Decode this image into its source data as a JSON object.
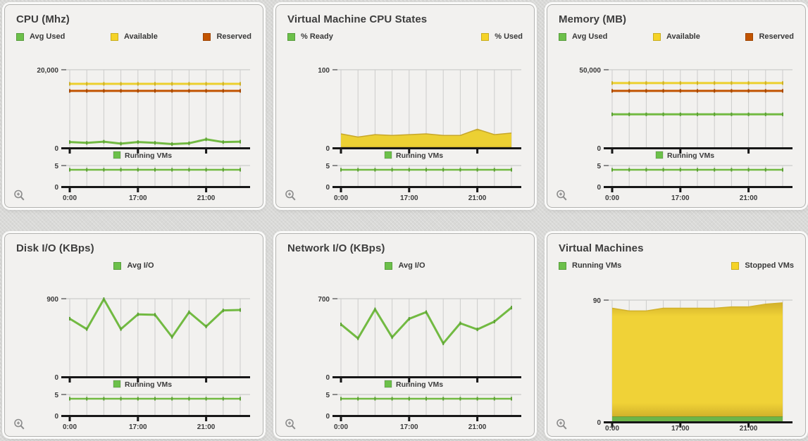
{
  "page": {
    "background": "#d9d9d7"
  },
  "colors": {
    "green": "#6cc04a",
    "yellow": "#f5d327",
    "orange": "#c25400",
    "axis": "#171717",
    "grid": "#cccccb",
    "plot_top_line": "#c3c3c1",
    "tick_label": "#3b3b3b"
  },
  "panel_controls": {
    "zoom_icon": "zoom-in-magnifier"
  },
  "panels": [
    {
      "title": "CPU (Mhz)",
      "legend": [
        {
          "label": "Avg Used",
          "color": "#6cc04a"
        },
        {
          "label": "Available",
          "color": "#f5d327"
        },
        {
          "label": "Reserved",
          "color": "#c25400"
        }
      ],
      "chart_data": {
        "type": "line",
        "n_points": 11,
        "x_labels": [
          "0:00",
          "17:00",
          "21:00"
        ],
        "x_label_ticks": [
          0,
          4,
          8
        ],
        "ylim": [
          0,
          20000
        ],
        "ymax_label": "20,000",
        "y0_label": "0",
        "series": [
          {
            "name": "Available",
            "style": "line",
            "color": "#ecd02d",
            "marker": "#cdb027",
            "values": [
              16400,
              16400,
              16400,
              16400,
              16400,
              16400,
              16400,
              16400,
              16400,
              16400,
              16400
            ]
          },
          {
            "name": "Reserved",
            "style": "line",
            "color": "#c25400",
            "marker": "#a64800",
            "values": [
              14600,
              14600,
              14600,
              14600,
              14600,
              14600,
              14600,
              14600,
              14600,
              14600,
              14600
            ]
          },
          {
            "name": "Avg Used",
            "style": "line",
            "color": "#72ba42",
            "marker": "#5ca035",
            "values": [
              1500,
              1300,
              1600,
              1100,
              1500,
              1300,
              1000,
              1200,
              2200,
              1500,
              1600
            ]
          }
        ],
        "mini": {
          "legend_label": "Running VMs",
          "legend_color": "#6cc04a",
          "ylim": [
            0,
            5
          ],
          "ymax_label": "5",
          "y0_label": "0",
          "color": "#72ba42",
          "marker": "#5ca035",
          "values": [
            4,
            4,
            4,
            4,
            4,
            4,
            4,
            4,
            4,
            4,
            4
          ]
        }
      }
    },
    {
      "title": "Virtual Machine CPU States",
      "legend": [
        {
          "label": "% Ready",
          "color": "#6cc04a"
        },
        {
          "label": "% Used",
          "color": "#f5d327"
        }
      ],
      "chart_data": {
        "type": "area",
        "n_points": 11,
        "x_labels": [
          "0:00",
          "17:00",
          "21:00"
        ],
        "x_label_ticks": [
          0,
          4,
          8
        ],
        "ylim": [
          0,
          100
        ],
        "ymax_label": "100",
        "y0_label": "0",
        "series": [
          {
            "name": "% Ready",
            "style": "line",
            "color": "#72ba42",
            "values": [
              1,
              1,
              1,
              1,
              1,
              1,
              1,
              1,
              1,
              1,
              1
            ]
          },
          {
            "name": "% Used",
            "style": "area",
            "fill": "#ecd033",
            "edge": "#c7a72b",
            "values": [
              18,
              14,
              17,
              16,
              17,
              18,
              16,
              16,
              24,
              17,
              19
            ]
          }
        ],
        "mini": {
          "legend_label": "Running VMs",
          "legend_color": "#6cc04a",
          "ylim": [
            0,
            5
          ],
          "ymax_label": "5",
          "y0_label": "0",
          "color": "#72ba42",
          "marker": "#5ca035",
          "values": [
            4,
            4,
            4,
            4,
            4,
            4,
            4,
            4,
            4,
            4,
            4
          ]
        }
      }
    },
    {
      "title": "Memory (MB)",
      "legend": [
        {
          "label": "Avg Used",
          "color": "#6cc04a"
        },
        {
          "label": "Available",
          "color": "#f5d327"
        },
        {
          "label": "Reserved",
          "color": "#c25400"
        }
      ],
      "chart_data": {
        "type": "line",
        "n_points": 11,
        "x_labels": [
          "0:00",
          "17:00",
          "21:00"
        ],
        "x_label_ticks": [
          0,
          4,
          8
        ],
        "ylim": [
          0,
          50000
        ],
        "ymax_label": "50,000",
        "y0_label": "0",
        "series": [
          {
            "name": "Available",
            "style": "line",
            "color": "#ecd02d",
            "marker": "#cdb027",
            "values": [
              41500,
              41500,
              41500,
              41500,
              41500,
              41500,
              41500,
              41500,
              41500,
              41500,
              41500
            ]
          },
          {
            "name": "Reserved",
            "style": "line",
            "color": "#c25400",
            "marker": "#a64800",
            "values": [
              36500,
              36500,
              36500,
              36500,
              36500,
              36500,
              36500,
              36500,
              36500,
              36500,
              36500
            ]
          },
          {
            "name": "Avg Used",
            "style": "line",
            "color": "#72ba42",
            "marker": "#5ca035",
            "values": [
              21500,
              21500,
              21500,
              21500,
              21500,
              21500,
              21500,
              21500,
              21500,
              21500,
              21500
            ]
          }
        ],
        "mini": {
          "legend_label": "Running VMs",
          "legend_color": "#6cc04a",
          "ylim": [
            0,
            5
          ],
          "ymax_label": "5",
          "y0_label": "0",
          "color": "#72ba42",
          "marker": "#5ca035",
          "values": [
            4,
            4,
            4,
            4,
            4,
            4,
            4,
            4,
            4,
            4,
            4
          ]
        }
      }
    },
    {
      "title": "Disk I/O (KBps)",
      "legend": [
        {
          "label": "Avg I/O",
          "color": "#6cc04a"
        }
      ],
      "chart_data": {
        "type": "line",
        "n_points": 11,
        "x_labels": [
          "0:00",
          "17:00",
          "21:00"
        ],
        "x_label_ticks": [
          0,
          4,
          8
        ],
        "ylim": [
          0,
          900
        ],
        "ymax_label": "900",
        "y0_label": "0",
        "series": [
          {
            "name": "Avg I/O",
            "style": "line",
            "color": "#72ba42",
            "marker": "#5ca035",
            "values": [
              670,
              550,
              895,
              550,
              720,
              715,
              460,
              745,
              580,
              765,
              770
            ]
          }
        ],
        "mini": {
          "legend_label": "Running VMs",
          "legend_color": "#6cc04a",
          "ylim": [
            0,
            5
          ],
          "ymax_label": "5",
          "y0_label": "0",
          "color": "#72ba42",
          "marker": "#5ca035",
          "values": [
            4,
            4,
            4,
            4,
            4,
            4,
            4,
            4,
            4,
            4,
            4
          ]
        }
      }
    },
    {
      "title": "Network I/O (KBps)",
      "legend": [
        {
          "label": "Avg I/O",
          "color": "#6cc04a"
        }
      ],
      "chart_data": {
        "type": "line",
        "n_points": 11,
        "x_labels": [
          "0:00",
          "17:00",
          "21:00"
        ],
        "x_label_ticks": [
          0,
          4,
          8
        ],
        "ylim": [
          0,
          700
        ],
        "ymax_label": "700",
        "y0_label": "0",
        "series": [
          {
            "name": "Avg I/O",
            "style": "line",
            "color": "#72ba42",
            "marker": "#5ca035",
            "values": [
              470,
              345,
              605,
              355,
              520,
              580,
              300,
              480,
              425,
              495,
              620
            ]
          }
        ],
        "mini": {
          "legend_label": "Running VMs",
          "legend_color": "#6cc04a",
          "ylim": [
            0,
            5
          ],
          "ymax_label": "5",
          "y0_label": "0",
          "color": "#72ba42",
          "marker": "#5ca035",
          "values": [
            4,
            4,
            4,
            4,
            4,
            4,
            4,
            4,
            4,
            4,
            4
          ]
        }
      }
    },
    {
      "title": "Virtual Machines",
      "legend": [
        {
          "label": "Running VMs",
          "color": "#6cc04a"
        },
        {
          "label": "Stopped VMs",
          "color": "#f5d327"
        }
      ],
      "chart_data": {
        "type": "stacked_area",
        "n_points": 11,
        "x_labels": [
          "0:00",
          "17:00",
          "21:00"
        ],
        "x_label_ticks": [
          0,
          4,
          8
        ],
        "ylim": [
          0,
          90
        ],
        "ymax_label": "90",
        "y0_label": "0",
        "series": [
          {
            "name": "Running VMs",
            "style": "area",
            "fill": "#6db54a",
            "edge": "#55942f",
            "values": [
              4,
              4,
              4,
              4,
              4,
              4,
              4,
              4,
              4,
              4,
              4
            ]
          },
          {
            "name": "Stopped VMs",
            "style": "area",
            "fill": "#f0d237",
            "edge": "#d2b12b",
            "stack_base": [
              4,
              4,
              4,
              4,
              4,
              4,
              4,
              4,
              4,
              4,
              4
            ],
            "values": [
              80,
              78,
              78,
              80,
              80,
              80,
              80,
              81,
              81,
              83,
              84
            ]
          }
        ]
      }
    }
  ]
}
